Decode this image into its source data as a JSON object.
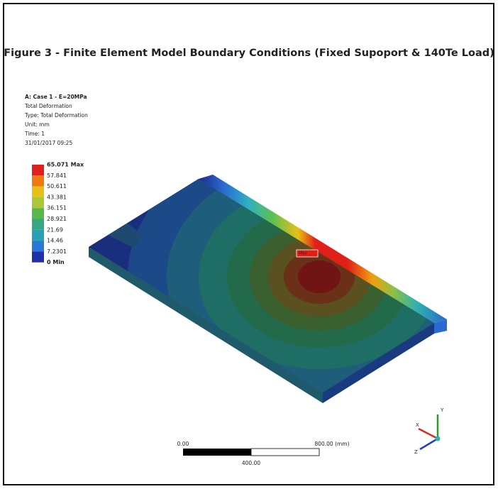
{
  "figure": {
    "title": "Figure 3 - Finite Element Model Boundary Conditions (Fixed Supoport & 140Te Load)",
    "info": [
      "A: Case 1 - E=20MPa",
      "Total Deformation",
      "Type: Total Deformation",
      "Unit: mm",
      "Time: 1",
      "31/01/2017 09:25"
    ],
    "legend": {
      "labels": [
        "65.071 Max",
        "57.841",
        "50.611",
        "43.381",
        "36.151",
        "28.921",
        "21.69",
        "14.46",
        "7.2301",
        "0 Min"
      ],
      "colors": [
        "#e0201a",
        "#f07a10",
        "#e8c018",
        "#a8c83a",
        "#58b84a",
        "#38a880",
        "#2aa0b8",
        "#2878d8",
        "#2030a8"
      ]
    },
    "probe": "Max",
    "scale_bar": {
      "left": "0.00",
      "right": "800.00 (mm)",
      "middle": "400.00"
    },
    "triad": {
      "y": "Y",
      "x": "X",
      "z": "Z"
    }
  }
}
